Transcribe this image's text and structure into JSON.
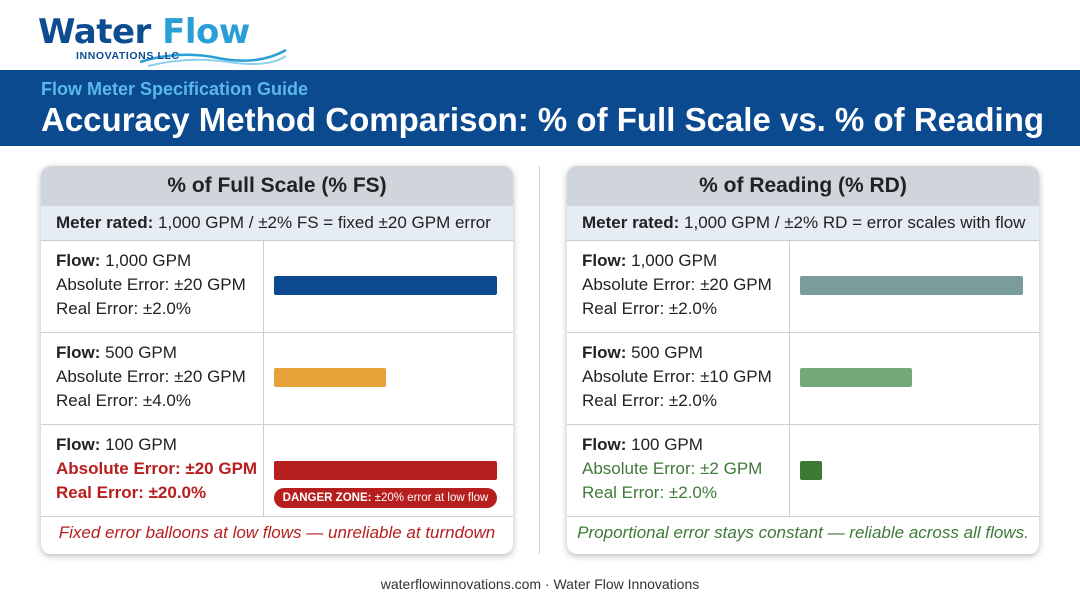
{
  "brand": {
    "name_part1": "Water",
    "name_part2": "Flow",
    "tagline": "INNOVATIONS LLC"
  },
  "banner": {
    "subtitle": "Flow Meter Specification Guide",
    "title": "Accuracy Method Comparison: % of Full Scale vs. % of Reading"
  },
  "left_panel": {
    "title": "% of Full Scale (% FS)",
    "meter_label": "Meter rated:",
    "meter_text": " 1,000 GPM / ±2% FS = fixed ±20 GPM error",
    "rows": [
      {
        "flow_label": "Flow:",
        "flow_value": " 1,000 GPM",
        "abs_error": "Absolute Error: ±20 GPM",
        "real_error": "Real Error: ±2.0%",
        "bar_fraction": 1.0,
        "bar_color": "#0b4a8f"
      },
      {
        "flow_label": "Flow:",
        "flow_value": " 500 GPM",
        "abs_error": "Absolute Error: ±20 GPM",
        "real_error": "Real Error: ±4.0%",
        "bar_fraction": 0.5,
        "bar_color": "#e6a33a"
      },
      {
        "flow_label": "Flow:",
        "flow_value": " 100 GPM",
        "abs_error": "Absolute Error: ±20 GPM",
        "real_error": "Real Error: ±20.0%",
        "bar_fraction": 1.0,
        "bar_color": "#b71e1e"
      }
    ],
    "danger_label": "DANGER ZONE:",
    "danger_text": " ±20% error at low flow",
    "footer": "Fixed error balloons at low flows — unreliable at turndown"
  },
  "right_panel": {
    "title": "% of Reading (% RD)",
    "meter_label": "Meter rated:",
    "meter_text": " 1,000 GPM / ±2% RD = error scales with flow",
    "rows": [
      {
        "flow_label": "Flow:",
        "flow_value": " 1,000 GPM",
        "abs_error": "Absolute Error: ±20 GPM",
        "real_error": "Real Error: ±2.0%",
        "bar_fraction": 1.0,
        "bar_color": "#7b9c9c"
      },
      {
        "flow_label": "Flow:",
        "flow_value": " 500 GPM",
        "abs_error": "Absolute Error: ±10 GPM",
        "real_error": "Real Error: ±2.0%",
        "bar_fraction": 0.5,
        "bar_color": "#72a87a"
      },
      {
        "flow_label": "Flow:",
        "flow_value": " 100 GPM",
        "abs_error": "Absolute Error: ±2 GPM",
        "real_error": "Real Error: ±2.0%",
        "bar_fraction": 0.1,
        "bar_color": "#3d7a36"
      }
    ],
    "footer": "Proportional error stays constant — reliable across all flows."
  },
  "footer": {
    "text": "waterflowinnovations.com · Water Flow Innovations"
  }
}
